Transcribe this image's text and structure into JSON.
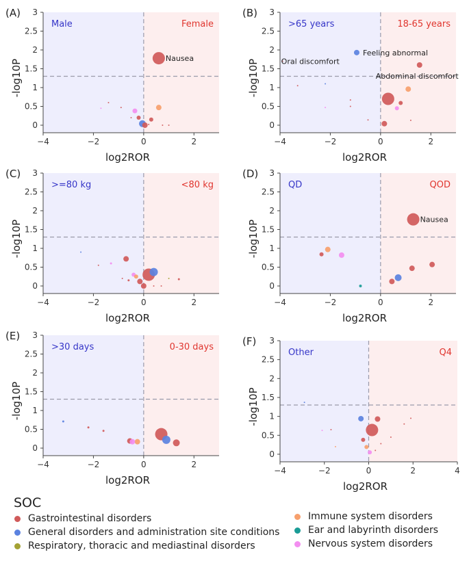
{
  "chart_data": [
    {
      "type": "scatter",
      "panel_label": "(A)",
      "left_group": "Male",
      "right_group": "Female",
      "xlabel": "log2ROR",
      "ylabel": "-log10P",
      "xlim": [
        -4,
        3
      ],
      "ylim": [
        -0.2,
        3
      ],
      "xticks": [
        "−4",
        "−2",
        "0",
        "2"
      ],
      "yticks": [
        "0",
        "0.5",
        "1",
        "1.5",
        "2",
        "2.5",
        "3"
      ],
      "threshold": 1.3,
      "points": [
        {
          "x": 0.6,
          "y": 1.78,
          "size": 9,
          "soc": "gi",
          "label": "Nausea"
        },
        {
          "x": 0.6,
          "y": 0.47,
          "size": 4,
          "soc": "immune"
        },
        {
          "x": -0.35,
          "y": 0.38,
          "size": 3.5,
          "soc": "nervous"
        },
        {
          "x": -0.2,
          "y": 0.2,
          "size": 3,
          "soc": "gi"
        },
        {
          "x": 0.3,
          "y": 0.15,
          "size": 3,
          "soc": "gi"
        },
        {
          "x": -0.05,
          "y": 0.04,
          "size": 5,
          "soc": "general"
        },
        {
          "x": 0.05,
          "y": 0.0,
          "size": 4,
          "soc": "gi"
        },
        {
          "x": -1.4,
          "y": 0.6,
          "size": 1,
          "soc": "gi"
        },
        {
          "x": -0.9,
          "y": 0.47,
          "size": 1,
          "soc": "gi"
        },
        {
          "x": -1.7,
          "y": 0.45,
          "size": 1,
          "soc": "nervous"
        },
        {
          "x": -0.5,
          "y": 0.2,
          "size": 1,
          "soc": "gi"
        },
        {
          "x": 0.75,
          "y": 0.0,
          "size": 1,
          "soc": "gi"
        },
        {
          "x": 1.0,
          "y": 0.0,
          "size": 1,
          "soc": "gi"
        },
        {
          "x": 0.2,
          "y": 0.02,
          "size": 1,
          "soc": "gi"
        }
      ]
    },
    {
      "type": "scatter",
      "panel_label": "(B)",
      "left_group": ">65 years",
      "right_group": "18-65 years",
      "xlabel": "log2ROR",
      "ylabel": "-log10P",
      "xlim": [
        -4,
        3
      ],
      "ylim": [
        -0.2,
        3
      ],
      "xticks": [
        "−4",
        "−2",
        "0",
        "2"
      ],
      "yticks": [
        "0",
        "0.5",
        "1",
        "1.5",
        "2",
        "2.5",
        "3"
      ],
      "threshold": 1.3,
      "points": [
        {
          "x": -0.95,
          "y": 1.93,
          "size": 4,
          "soc": "general",
          "label": "Feeling abnormal"
        },
        {
          "x": -3.9,
          "y": 1.7,
          "size": 1,
          "soc": "gi",
          "label": "Oral discomfort"
        },
        {
          "x": 1.55,
          "y": 1.6,
          "size": 4,
          "soc": "gi",
          "label": "Abdominal discomfort"
        },
        {
          "x": 1.1,
          "y": 0.96,
          "size": 4,
          "soc": "immune"
        },
        {
          "x": 0.3,
          "y": 0.7,
          "size": 9,
          "soc": "gi"
        },
        {
          "x": 0.8,
          "y": 0.59,
          "size": 3,
          "soc": "gi"
        },
        {
          "x": 0.65,
          "y": 0.45,
          "size": 3,
          "soc": "nervous"
        },
        {
          "x": 0.15,
          "y": 0.04,
          "size": 4,
          "soc": "gi"
        },
        {
          "x": -1.2,
          "y": 0.67,
          "size": 1,
          "soc": "gi"
        },
        {
          "x": -1.2,
          "y": 0.5,
          "size": 1,
          "soc": "gi"
        },
        {
          "x": -2.2,
          "y": 1.1,
          "size": 1,
          "soc": "general"
        },
        {
          "x": -0.5,
          "y": 0.14,
          "size": 1,
          "soc": "gi"
        },
        {
          "x": 1.2,
          "y": 0.13,
          "size": 1,
          "soc": "gi"
        },
        {
          "x": -2.2,
          "y": 0.47,
          "size": 1,
          "soc": "nervous"
        },
        {
          "x": -3.3,
          "y": 1.05,
          "size": 1,
          "soc": "gi"
        }
      ]
    },
    {
      "type": "scatter",
      "panel_label": "(C)",
      "left_group": ">=80 kg",
      "right_group": "<80 kg",
      "xlabel": "log2ROR",
      "ylabel": "-log10P",
      "xlim": [
        -4,
        3
      ],
      "ylim": [
        -0.2,
        3
      ],
      "xticks": [
        "−4",
        "−2",
        "0",
        "2"
      ],
      "yticks": [
        "0",
        "0.5",
        "1",
        "1.5",
        "2",
        "2.5",
        "3"
      ],
      "threshold": 1.3,
      "points": [
        {
          "x": -0.7,
          "y": 0.72,
          "size": 4,
          "soc": "gi"
        },
        {
          "x": 0.4,
          "y": 0.37,
          "size": 6,
          "soc": "general"
        },
        {
          "x": 0.2,
          "y": 0.3,
          "size": 9,
          "soc": "gi"
        },
        {
          "x": -0.4,
          "y": 0.3,
          "size": 3,
          "soc": "nervous"
        },
        {
          "x": -0.3,
          "y": 0.25,
          "size": 3,
          "soc": "immune"
        },
        {
          "x": -0.15,
          "y": 0.12,
          "size": 4,
          "soc": "gi"
        },
        {
          "x": 0.0,
          "y": 0.0,
          "size": 4,
          "soc": "gi"
        },
        {
          "x": -2.5,
          "y": 0.9,
          "size": 1,
          "soc": "general"
        },
        {
          "x": -1.3,
          "y": 0.6,
          "size": 1.5,
          "soc": "nervous"
        },
        {
          "x": -1.8,
          "y": 0.55,
          "size": 1,
          "soc": "gi"
        },
        {
          "x": -0.6,
          "y": 0.15,
          "size": 1.5,
          "soc": "gi"
        },
        {
          "x": -0.85,
          "y": 0.2,
          "size": 1,
          "soc": "gi"
        },
        {
          "x": 0.4,
          "y": 0.0,
          "size": 1,
          "soc": "gi"
        },
        {
          "x": 0.7,
          "y": 0.0,
          "size": 1,
          "soc": "gi"
        },
        {
          "x": 1.0,
          "y": 0.2,
          "size": 1,
          "soc": "respiratory"
        },
        {
          "x": 1.4,
          "y": 0.18,
          "size": 1.5,
          "soc": "gi"
        }
      ]
    },
    {
      "type": "scatter",
      "panel_label": "(D)",
      "left_group": "QD",
      "right_group": "QOD",
      "xlabel": "log2ROR",
      "ylabel": "-log10P",
      "xlim": [
        -4,
        3
      ],
      "ylim": [
        -0.2,
        3
      ],
      "xticks": [
        "−4",
        "−2",
        "0",
        "2"
      ],
      "yticks": [
        "0",
        "0.5",
        "1",
        "1.5",
        "2",
        "2.5",
        "3"
      ],
      "threshold": 1.3,
      "points": [
        {
          "x": 1.3,
          "y": 1.77,
          "size": 9,
          "soc": "gi",
          "label": "Nausea"
        },
        {
          "x": -2.1,
          "y": 0.97,
          "size": 4,
          "soc": "immune"
        },
        {
          "x": -2.35,
          "y": 0.84,
          "size": 3,
          "soc": "gi"
        },
        {
          "x": -1.55,
          "y": 0.82,
          "size": 4,
          "soc": "nervous"
        },
        {
          "x": 2.05,
          "y": 0.57,
          "size": 4,
          "soc": "gi"
        },
        {
          "x": 1.25,
          "y": 0.47,
          "size": 4,
          "soc": "gi"
        },
        {
          "x": 0.7,
          "y": 0.22,
          "size": 5,
          "soc": "general"
        },
        {
          "x": 0.45,
          "y": 0.12,
          "size": 4,
          "soc": "gi"
        },
        {
          "x": -0.8,
          "y": 0.0,
          "size": 2,
          "soc": "ear"
        }
      ]
    },
    {
      "type": "scatter",
      "panel_label": "(E)",
      "left_group": ">30 days",
      "right_group": "0-30 days",
      "xlabel": "log2ROR",
      "ylabel": "-log10P",
      "xlim": [
        -4,
        3
      ],
      "ylim": [
        -0.2,
        3
      ],
      "xticks": [
        "−4",
        "−2",
        "0",
        "2"
      ],
      "yticks": [
        "0",
        "0.5",
        "1",
        "1.5",
        "2",
        "2.5",
        "3"
      ],
      "threshold": 1.3,
      "points": [
        {
          "x": 0.7,
          "y": 0.37,
          "size": 9,
          "soc": "gi"
        },
        {
          "x": 0.9,
          "y": 0.22,
          "size": 6,
          "soc": "general"
        },
        {
          "x": 1.3,
          "y": 0.14,
          "size": 5,
          "soc": "gi"
        },
        {
          "x": -0.55,
          "y": 0.19,
          "size": 4,
          "soc": "gi"
        },
        {
          "x": -0.25,
          "y": 0.17,
          "size": 4,
          "soc": "immune"
        },
        {
          "x": -0.45,
          "y": 0.17,
          "size": 4,
          "soc": "nervous"
        },
        {
          "x": -3.2,
          "y": 0.71,
          "size": 1.5,
          "soc": "general"
        },
        {
          "x": -2.2,
          "y": 0.55,
          "size": 1.5,
          "soc": "gi"
        },
        {
          "x": -1.6,
          "y": 0.46,
          "size": 1.5,
          "soc": "gi"
        }
      ]
    },
    {
      "type": "scatter",
      "panel_label": "(F)",
      "left_group": "Other",
      "right_group": "Q4",
      "xlabel": "log2ROR",
      "ylabel": "-log10P",
      "xlim": [
        -4,
        4
      ],
      "ylim": [
        -0.2,
        3
      ],
      "xticks": [
        "−4",
        "−2",
        "0",
        "2",
        "4"
      ],
      "yticks": [
        "0",
        "0.5",
        "1",
        "1.5",
        "2",
        "2.5",
        "3"
      ],
      "threshold": 1.3,
      "points": [
        {
          "x": -0.35,
          "y": 0.94,
          "size": 4,
          "soc": "general"
        },
        {
          "x": 0.4,
          "y": 0.93,
          "size": 4,
          "soc": "gi"
        },
        {
          "x": 0.15,
          "y": 0.64,
          "size": 9,
          "soc": "gi"
        },
        {
          "x": -0.25,
          "y": 0.38,
          "size": 3,
          "soc": "gi"
        },
        {
          "x": -0.1,
          "y": 0.19,
          "size": 3,
          "soc": "immune"
        },
        {
          "x": 0.05,
          "y": 0.05,
          "size": 3,
          "soc": "nervous"
        },
        {
          "x": -2.9,
          "y": 1.37,
          "size": 1,
          "soc": "general"
        },
        {
          "x": 1.9,
          "y": 0.95,
          "size": 1,
          "soc": "gi"
        },
        {
          "x": 1.6,
          "y": 0.8,
          "size": 1,
          "soc": "gi"
        },
        {
          "x": -2.1,
          "y": 0.63,
          "size": 1,
          "soc": "nervous"
        },
        {
          "x": -1.7,
          "y": 0.65,
          "size": 1,
          "soc": "gi"
        },
        {
          "x": 1.0,
          "y": 0.45,
          "size": 1,
          "soc": "gi"
        },
        {
          "x": 0.55,
          "y": 0.28,
          "size": 1,
          "soc": "gi"
        },
        {
          "x": -1.5,
          "y": 0.2,
          "size": 1,
          "soc": "immune"
        },
        {
          "x": 0.3,
          "y": 0.1,
          "size": 1,
          "soc": "gi"
        }
      ]
    }
  ],
  "legend": {
    "title": "SOC",
    "items": [
      {
        "key": "gi",
        "label": "Gastrointestinal disorders",
        "color": "#d05a5a"
      },
      {
        "key": "general",
        "label": "General disorders and administration site conditions",
        "color": "#5b82e0"
      },
      {
        "key": "respiratory",
        "label": "Respiratory, thoracic and mediastinal disorders",
        "color": "#a4a234"
      },
      {
        "key": "immune",
        "label": "Immune system disorders",
        "color": "#f7a06d"
      },
      {
        "key": "ear",
        "label": "Ear and labyrinth disorders",
        "color": "#1a9c96"
      },
      {
        "key": "nervous",
        "label": "Nervous system disorders",
        "color": "#f38ef0"
      }
    ]
  },
  "colors": {
    "left_region": "#eeeefd",
    "right_region": "#fdeeee",
    "left_text": "#3535c8",
    "right_text": "#e0352e",
    "guide_line": "#9a9aaa"
  }
}
